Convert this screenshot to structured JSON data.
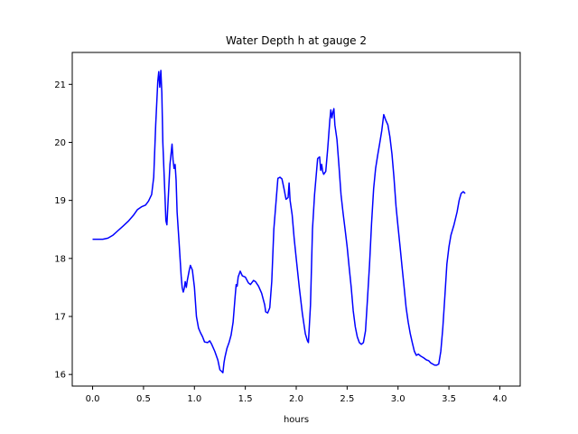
{
  "chart_data": {
    "type": "line",
    "title": "Water Depth h at gauge 2",
    "xlabel": "hours",
    "ylabel": "",
    "xlim": [
      -0.2,
      4.2
    ],
    "ylim": [
      15.8,
      21.55
    ],
    "grid": false,
    "x_ticks": [
      0.0,
      0.5,
      1.0,
      1.5,
      2.0,
      2.5,
      3.0,
      3.5,
      4.0
    ],
    "x_tick_labels": [
      "0.0",
      "0.5",
      "1.0",
      "1.5",
      "2.0",
      "2.5",
      "3.0",
      "3.5",
      "4.0"
    ],
    "y_ticks": [
      16,
      17,
      18,
      19,
      20,
      21
    ],
    "y_tick_labels": [
      "16",
      "17",
      "18",
      "19",
      "20",
      "21"
    ],
    "line_color": "#0000ff",
    "series": [
      {
        "points": [
          [
            0.0,
            18.33
          ],
          [
            0.1,
            18.33
          ],
          [
            0.15,
            18.35
          ],
          [
            0.2,
            18.4
          ],
          [
            0.25,
            18.48
          ],
          [
            0.3,
            18.56
          ],
          [
            0.35,
            18.64
          ],
          [
            0.4,
            18.74
          ],
          [
            0.44,
            18.84
          ],
          [
            0.48,
            18.89
          ],
          [
            0.52,
            18.92
          ],
          [
            0.55,
            18.99
          ],
          [
            0.58,
            19.1
          ],
          [
            0.6,
            19.4
          ],
          [
            0.62,
            20.3
          ],
          [
            0.64,
            21.05
          ],
          [
            0.65,
            21.22
          ],
          [
            0.66,
            20.95
          ],
          [
            0.67,
            21.24
          ],
          [
            0.68,
            20.85
          ],
          [
            0.69,
            20.0
          ],
          [
            0.71,
            19.1
          ],
          [
            0.72,
            18.65
          ],
          [
            0.73,
            18.58
          ],
          [
            0.74,
            18.95
          ],
          [
            0.76,
            19.62
          ],
          [
            0.78,
            19.97
          ],
          [
            0.79,
            19.7
          ],
          [
            0.8,
            19.55
          ],
          [
            0.81,
            19.62
          ],
          [
            0.82,
            19.35
          ],
          [
            0.83,
            18.8
          ],
          [
            0.85,
            18.25
          ],
          [
            0.87,
            17.7
          ],
          [
            0.88,
            17.5
          ],
          [
            0.89,
            17.42
          ],
          [
            0.9,
            17.48
          ],
          [
            0.91,
            17.6
          ],
          [
            0.92,
            17.5
          ],
          [
            0.93,
            17.62
          ],
          [
            0.95,
            17.8
          ],
          [
            0.96,
            17.88
          ],
          [
            0.98,
            17.8
          ],
          [
            1.0,
            17.5
          ],
          [
            1.02,
            17.0
          ],
          [
            1.04,
            16.8
          ],
          [
            1.06,
            16.72
          ],
          [
            1.08,
            16.65
          ],
          [
            1.1,
            16.56
          ],
          [
            1.13,
            16.55
          ],
          [
            1.15,
            16.58
          ],
          [
            1.17,
            16.52
          ],
          [
            1.2,
            16.4
          ],
          [
            1.23,
            16.25
          ],
          [
            1.25,
            16.08
          ],
          [
            1.27,
            16.05
          ],
          [
            1.28,
            16.03
          ],
          [
            1.29,
            16.2
          ],
          [
            1.3,
            16.3
          ],
          [
            1.32,
            16.45
          ],
          [
            1.34,
            16.55
          ],
          [
            1.36,
            16.68
          ],
          [
            1.38,
            16.9
          ],
          [
            1.4,
            17.35
          ],
          [
            1.41,
            17.55
          ],
          [
            1.42,
            17.52
          ],
          [
            1.43,
            17.68
          ],
          [
            1.45,
            17.78
          ],
          [
            1.47,
            17.7
          ],
          [
            1.5,
            17.68
          ],
          [
            1.53,
            17.58
          ],
          [
            1.55,
            17.55
          ],
          [
            1.58,
            17.62
          ],
          [
            1.6,
            17.6
          ],
          [
            1.63,
            17.52
          ],
          [
            1.66,
            17.4
          ],
          [
            1.69,
            17.2
          ],
          [
            1.7,
            17.08
          ],
          [
            1.72,
            17.06
          ],
          [
            1.74,
            17.15
          ],
          [
            1.76,
            17.6
          ],
          [
            1.78,
            18.5
          ],
          [
            1.8,
            18.95
          ],
          [
            1.82,
            19.38
          ],
          [
            1.84,
            19.4
          ],
          [
            1.86,
            19.37
          ],
          [
            1.88,
            19.2
          ],
          [
            1.9,
            19.02
          ],
          [
            1.92,
            19.05
          ],
          [
            1.93,
            19.3
          ],
          [
            1.94,
            19.0
          ],
          [
            1.96,
            18.75
          ],
          [
            1.98,
            18.35
          ],
          [
            2.0,
            18.0
          ],
          [
            2.03,
            17.5
          ],
          [
            2.06,
            17.05
          ],
          [
            2.09,
            16.7
          ],
          [
            2.11,
            16.58
          ],
          [
            2.12,
            16.55
          ],
          [
            2.14,
            17.2
          ],
          [
            2.16,
            18.5
          ],
          [
            2.18,
            19.1
          ],
          [
            2.2,
            19.5
          ],
          [
            2.21,
            19.72
          ],
          [
            2.23,
            19.75
          ],
          [
            2.24,
            19.52
          ],
          [
            2.25,
            19.62
          ],
          [
            2.26,
            19.5
          ],
          [
            2.27,
            19.45
          ],
          [
            2.29,
            19.5
          ],
          [
            2.31,
            19.9
          ],
          [
            2.33,
            20.38
          ],
          [
            2.34,
            20.56
          ],
          [
            2.35,
            20.42
          ],
          [
            2.36,
            20.52
          ],
          [
            2.37,
            20.58
          ],
          [
            2.38,
            20.3
          ],
          [
            2.4,
            20.05
          ],
          [
            2.42,
            19.6
          ],
          [
            2.44,
            19.1
          ],
          [
            2.46,
            18.78
          ],
          [
            2.48,
            18.5
          ],
          [
            2.5,
            18.2
          ],
          [
            2.52,
            17.85
          ],
          [
            2.54,
            17.5
          ],
          [
            2.56,
            17.1
          ],
          [
            2.58,
            16.82
          ],
          [
            2.6,
            16.65
          ],
          [
            2.62,
            16.55
          ],
          [
            2.64,
            16.52
          ],
          [
            2.66,
            16.55
          ],
          [
            2.68,
            16.75
          ],
          [
            2.7,
            17.3
          ],
          [
            2.72,
            17.9
          ],
          [
            2.74,
            18.6
          ],
          [
            2.76,
            19.2
          ],
          [
            2.78,
            19.55
          ],
          [
            2.8,
            19.78
          ],
          [
            2.82,
            19.98
          ],
          [
            2.84,
            20.2
          ],
          [
            2.86,
            20.48
          ],
          [
            2.88,
            20.38
          ],
          [
            2.9,
            20.3
          ],
          [
            2.92,
            20.1
          ],
          [
            2.94,
            19.8
          ],
          [
            2.96,
            19.4
          ],
          [
            2.98,
            18.9
          ],
          [
            3.0,
            18.55
          ],
          [
            3.02,
            18.2
          ],
          [
            3.04,
            17.85
          ],
          [
            3.06,
            17.5
          ],
          [
            3.08,
            17.15
          ],
          [
            3.1,
            16.9
          ],
          [
            3.12,
            16.7
          ],
          [
            3.14,
            16.55
          ],
          [
            3.16,
            16.4
          ],
          [
            3.18,
            16.33
          ],
          [
            3.2,
            16.35
          ],
          [
            3.22,
            16.32
          ],
          [
            3.25,
            16.29
          ],
          [
            3.28,
            16.25
          ],
          [
            3.3,
            16.24
          ],
          [
            3.32,
            16.2
          ],
          [
            3.34,
            16.18
          ],
          [
            3.36,
            16.16
          ],
          [
            3.38,
            16.16
          ],
          [
            3.4,
            16.18
          ],
          [
            3.42,
            16.4
          ],
          [
            3.44,
            16.8
          ],
          [
            3.46,
            17.35
          ],
          [
            3.48,
            17.9
          ],
          [
            3.5,
            18.2
          ],
          [
            3.52,
            18.4
          ],
          [
            3.55,
            18.58
          ],
          [
            3.58,
            18.8
          ],
          [
            3.6,
            19.0
          ],
          [
            3.62,
            19.12
          ],
          [
            3.64,
            19.15
          ],
          [
            3.66,
            19.12
          ]
        ]
      }
    ]
  }
}
